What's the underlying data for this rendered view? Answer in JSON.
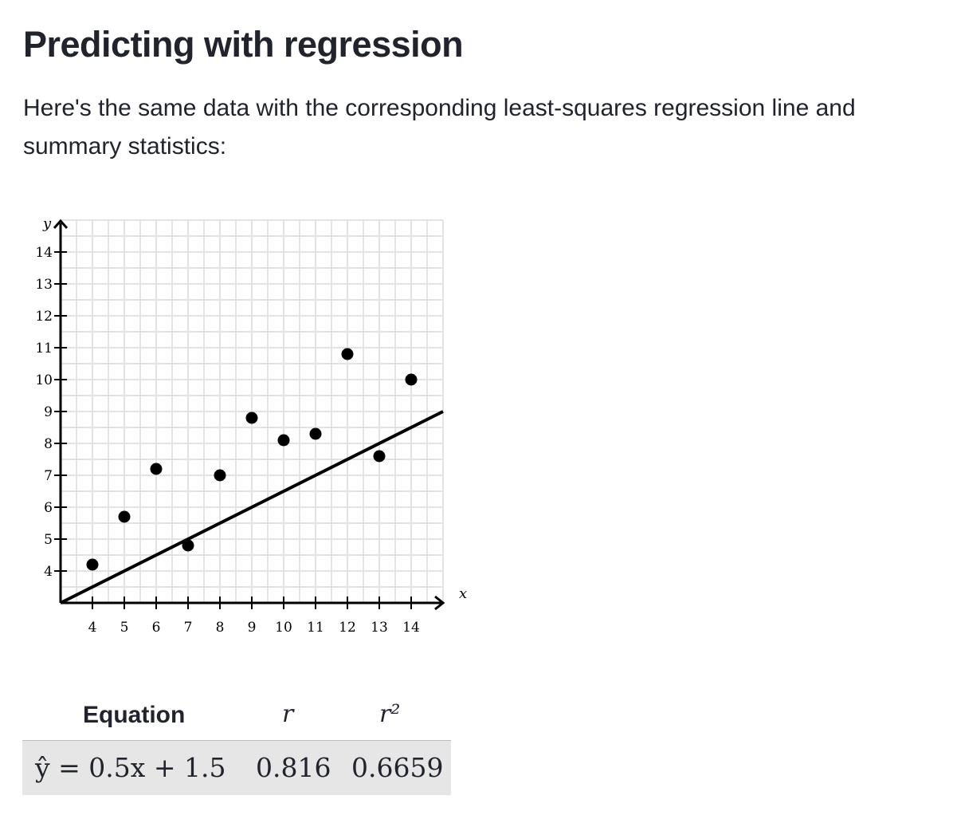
{
  "heading": "Predicting with regression",
  "intro": "Here's the same data with the corresponding least-squares regression line and summary statistics:",
  "chart_data": {
    "type": "scatter",
    "xlabel": "x",
    "ylabel": "y",
    "xlim": [
      3,
      15
    ],
    "ylim": [
      3,
      15
    ],
    "x_ticks": [
      4,
      5,
      6,
      7,
      8,
      9,
      10,
      11,
      12,
      13,
      14
    ],
    "y_ticks": [
      4,
      5,
      6,
      7,
      8,
      9,
      10,
      11,
      12,
      13,
      14
    ],
    "grid": true,
    "points": [
      {
        "x": 4,
        "y": 4.2
      },
      {
        "x": 5,
        "y": 5.7
      },
      {
        "x": 6,
        "y": 7.2
      },
      {
        "x": 7,
        "y": 4.8
      },
      {
        "x": 8,
        "y": 7.0
      },
      {
        "x": 9,
        "y": 8.8
      },
      {
        "x": 10,
        "y": 8.1
      },
      {
        "x": 11,
        "y": 8.3
      },
      {
        "x": 12,
        "y": 10.8
      },
      {
        "x": 13,
        "y": 7.6
      },
      {
        "x": 14,
        "y": 10.0
      }
    ],
    "regression_line": {
      "slope": 0.5,
      "intercept": 1.5
    }
  },
  "stats": {
    "headers": {
      "equation": "Equation",
      "r": "r",
      "r2": "r²"
    },
    "equation": "ŷ = 0.5x + 1.5",
    "r": "0.816",
    "r2": "0.6659"
  }
}
